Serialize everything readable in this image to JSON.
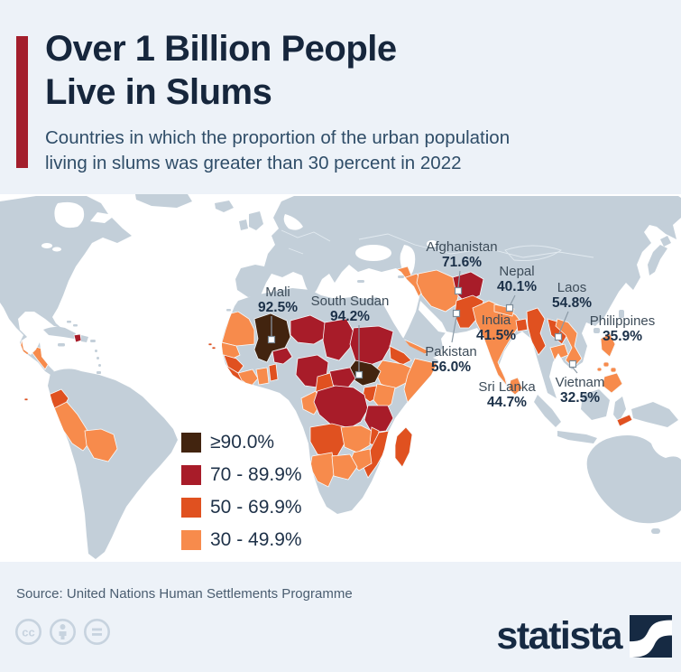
{
  "page": {
    "background": "#edf2f8"
  },
  "header": {
    "accent_color": "#a31e2c",
    "title_lines": [
      "Over 1 Billion People",
      "Live in Slums"
    ],
    "subtitle_lines": [
      "Countries in which the proportion of the urban population",
      "living in slums was greater than 30 percent in 2022"
    ]
  },
  "chart_data": {
    "type": "heatmap",
    "subtype": "choropleth-world-map",
    "title": "Over 1 Billion People Live in Slums",
    "subtitle": "Countries in which the proportion of the urban population living in slums was greater than 30 percent in 2022",
    "year": "2022",
    "unit": "share of urban population living in slums",
    "labeled_countries": [
      {
        "name": "Mali",
        "value": "92.5%"
      },
      {
        "name": "South Sudan",
        "value": "94.2%"
      },
      {
        "name": "Afghanistan",
        "value": "71.6%"
      },
      {
        "name": "Nepal",
        "value": "40.1%"
      },
      {
        "name": "Laos",
        "value": "54.8%"
      },
      {
        "name": "Philippines",
        "value": "35.9%"
      },
      {
        "name": "India",
        "value": "41.5%"
      },
      {
        "name": "Pakistan",
        "value": "56.0%"
      },
      {
        "name": "Sri Lanka",
        "value": "44.7%"
      },
      {
        "name": "Vietnam",
        "value": "32.5%"
      }
    ],
    "legend": [
      {
        "label": "≥90.0%",
        "color": "#42240f"
      },
      {
        "label": "70 - 89.9%",
        "color": "#a81c29"
      },
      {
        "label": "50 - 69.9%",
        "color": "#e05120"
      },
      {
        "label": "30 - 49.9%",
        "color": "#f78b4c"
      }
    ],
    "legend_position": "bottom-left of map",
    "base_land_color": "#c3cfd9",
    "ocean_color": "#ffffff",
    "shaded_countries_estimated": {
      "gte_90": [
        "Mali",
        "South Sudan"
      ],
      "70_to_89.9": [
        "Afghanistan",
        "Haiti",
        "Niger",
        "Chad",
        "Sudan",
        "Nigeria",
        "Burkina Faso",
        "Central African Republic",
        "DR Congo",
        "Tanzania"
      ],
      "50_to_69.9": [
        "Pakistan",
        "Laos",
        "Ecuador",
        "Guinea",
        "Sierra Leone",
        "Liberia",
        "Benin",
        "Cameroon",
        "Eritrea",
        "Uganda",
        "Angola",
        "Malawi",
        "Mozambique",
        "Madagascar",
        "Myanmar",
        "Bangladesh",
        "Timor-Leste",
        "Cape Verde"
      ],
      "30_to_49.9": [
        "India",
        "Nepal",
        "Vietnam",
        "Philippines",
        "Sri Lanka",
        "Cambodia",
        "Iran",
        "Iraq",
        "Syria",
        "Yemen",
        "Ethiopia",
        "Somalia",
        "Kenya",
        "Zambia",
        "Zimbabwe",
        "Namibia",
        "Botswana",
        "Mauritania",
        "Senegal",
        "Côte d'Ivoire",
        "Ghana",
        "Peru",
        "Bolivia",
        "Guatemala",
        "Honduras",
        "Nicaragua"
      ]
    }
  },
  "footer": {
    "source": "Source: United Nations Human Settlements Programme",
    "brand": "statista",
    "brand_color": "#162a43",
    "license_icons": [
      "cc-icon",
      "attribution-icon",
      "equal-icon"
    ]
  }
}
